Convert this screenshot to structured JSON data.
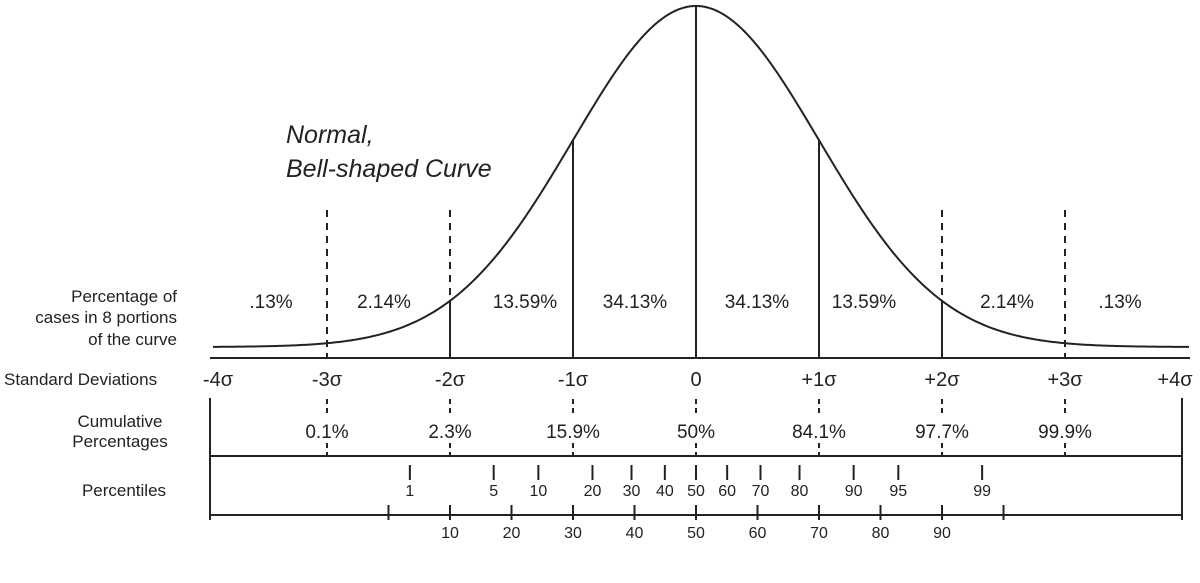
{
  "title_line1": "Normal,",
  "title_line2": "Bell-shaped Curve",
  "row_labels": {
    "percentage": [
      "Percentage of",
      "cases in 8 portions",
      "of the curve"
    ],
    "std_dev": "Standard Deviations",
    "cumulative": [
      "Cumulative",
      "Percentages"
    ],
    "percentiles": "Percentiles"
  },
  "portion_percentages": [
    ".13%",
    "2.14%",
    "13.59%",
    "34.13%",
    "34.13%",
    "13.59%",
    "2.14%",
    ".13%"
  ],
  "std_dev_labels": [
    "-4σ",
    "-3σ",
    "-2σ",
    "-1σ",
    "0",
    "+1σ",
    "+2σ",
    "+3σ",
    "+4σ"
  ],
  "cumulative_percentages": [
    "0.1%",
    "2.3%",
    "15.9%",
    "50%",
    "84.1%",
    "97.7%",
    "99.9%"
  ],
  "percentiles_upper": [
    "1",
    "5",
    "10",
    "20",
    "30",
    "40",
    "50",
    "60",
    "70",
    "80",
    "90",
    "95",
    "99"
  ],
  "percentiles_lower": [
    "10",
    "20",
    "30",
    "40",
    "50",
    "60",
    "70",
    "80",
    "90"
  ],
  "sd_values": [
    -4,
    -3,
    -2,
    -1,
    0,
    1,
    2,
    3,
    4
  ],
  "percentiles_upper_values": [
    1,
    5,
    10,
    20,
    30,
    40,
    50,
    60,
    70,
    80,
    90,
    95,
    99
  ],
  "percentiles_lower_values": [
    10,
    20,
    30,
    40,
    50,
    60,
    70,
    80,
    90
  ]
}
